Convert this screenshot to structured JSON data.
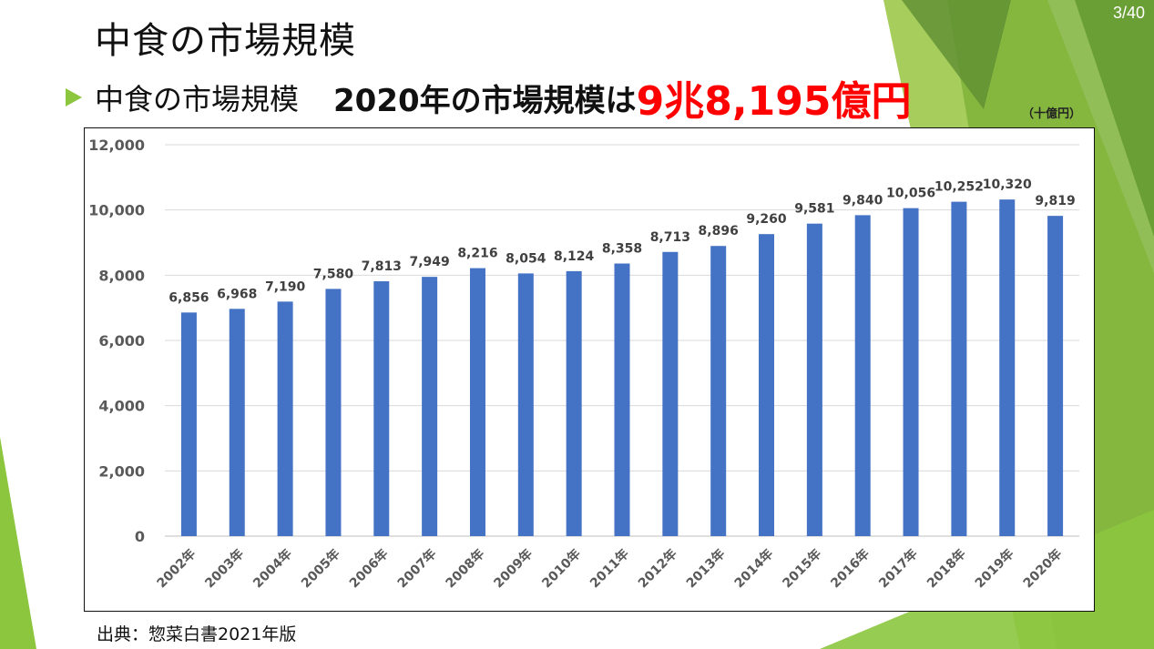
{
  "slide": {
    "page_number": "3/40",
    "title": "中食の市場規模",
    "subtitle": "中食の市場規模",
    "headline_prefix": "2020年の市場規模は",
    "headline_value": "9兆8,195億円",
    "unit_label": "（十億円）",
    "source": "出典：惣菜白書2021年版"
  },
  "colors": {
    "bar": "#4472c4",
    "accent_green": "#8cc63f",
    "headline_red": "#ff0000"
  },
  "chart_data": {
    "type": "bar",
    "title": "",
    "xlabel": "",
    "ylabel": "十億円",
    "ylim": [
      0,
      12000
    ],
    "yticks": [
      0,
      2000,
      4000,
      6000,
      8000,
      10000,
      12000
    ],
    "ytick_labels": [
      "0",
      "2,000",
      "4,000",
      "6,000",
      "8,000",
      "10,000",
      "12,000"
    ],
    "grid": true,
    "categories": [
      "2002年",
      "2003年",
      "2004年",
      "2005年",
      "2006年",
      "2007年",
      "2008年",
      "2009年",
      "2010年",
      "2011年",
      "2012年",
      "2013年",
      "2014年",
      "2015年",
      "2016年",
      "2017年",
      "2018年",
      "2019年",
      "2020年"
    ],
    "values": [
      6856,
      6968,
      7190,
      7580,
      7813,
      7949,
      8216,
      8054,
      8124,
      8358,
      8713,
      8896,
      9260,
      9581,
      9840,
      10056,
      10252,
      10320,
      9819
    ],
    "value_labels": [
      "6,856",
      "6,968",
      "7,190",
      "7,580",
      "7,813",
      "7,949",
      "8,216",
      "8,054",
      "8,124",
      "8,358",
      "8,713",
      "8,896",
      "9,260",
      "9,581",
      "9,840",
      "10,056",
      "10,252",
      "10,320",
      "9,819"
    ]
  }
}
